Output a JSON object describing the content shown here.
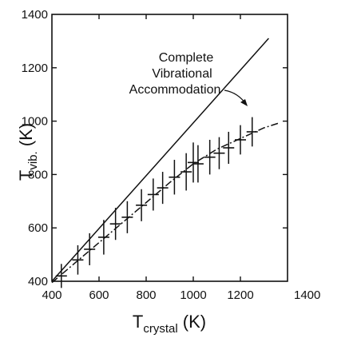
{
  "chart_data": {
    "type": "scatter",
    "xlabel": {
      "main": "T",
      "sub": "crystal",
      "unit": " (K)"
    },
    "ylabel": {
      "main": "T",
      "sub": "vib.",
      "unit": " (K)"
    },
    "xlim": [
      400,
      1400
    ],
    "ylim": [
      400,
      1400
    ],
    "xticks": [
      "400",
      "600",
      "800",
      "1000",
      "1200",
      "1400"
    ],
    "yticks": [
      "400",
      "600",
      "800",
      "1000",
      "1200",
      "1400"
    ],
    "grid": false,
    "annotation": {
      "lines": [
        "Complete",
        "Vibrational",
        "Accommodation"
      ],
      "points_to": [
        1020,
        1020
      ]
    },
    "reference_line": {
      "x": [
        400,
        1320
      ],
      "y": [
        400,
        1310
      ]
    },
    "fit_curve": {
      "x": [
        400,
        500,
        600,
        700,
        800,
        900,
        1000,
        1100,
        1200,
        1300,
        1360
      ],
      "y": [
        395,
        470,
        545,
        620,
        695,
        770,
        840,
        895,
        935,
        975,
        992
      ]
    },
    "series": [
      {
        "x": [
          440,
          510,
          560,
          620,
          670,
          720,
          780,
          830,
          870,
          920,
          970,
          1000,
          1020,
          1070,
          1110,
          1150,
          1200,
          1250
        ],
        "y": [
          420,
          480,
          520,
          565,
          615,
          640,
          685,
          725,
          750,
          790,
          810,
          845,
          840,
          865,
          880,
          900,
          930,
          960
        ],
        "yerr": [
          45,
          55,
          60,
          65,
          60,
          60,
          60,
          60,
          60,
          65,
          70,
          75,
          70,
          65,
          60,
          60,
          55,
          55
        ]
      }
    ]
  }
}
